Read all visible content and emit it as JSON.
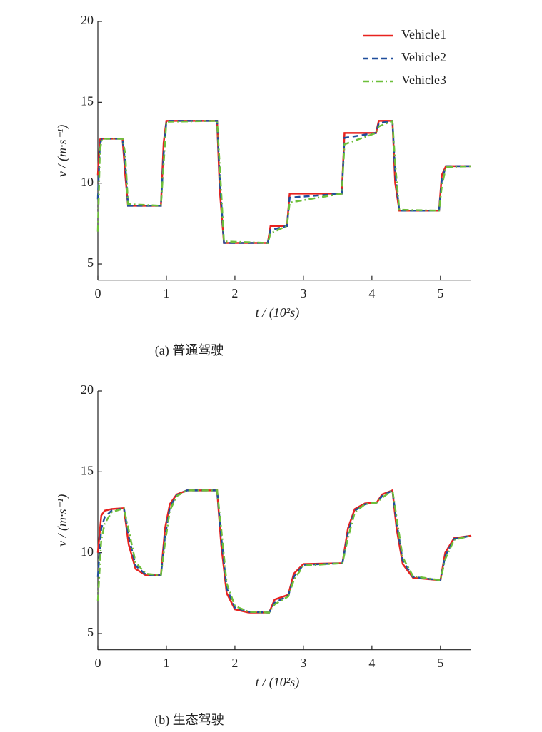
{
  "chart_data": [
    {
      "type": "line",
      "caption": "(a)  普通驾驶",
      "x_label": "t / (10²s)",
      "y_label": "v / (m·s⁻¹)",
      "x": [
        0,
        0.03,
        0.06,
        0.36,
        0.4,
        0.44,
        0.92,
        0.96,
        1.0,
        1.74,
        1.78,
        1.84,
        2.48,
        2.52,
        2.76,
        2.8,
        3.56,
        3.6,
        4.06,
        4.1,
        4.3,
        4.34,
        4.4,
        4.98,
        5.02,
        5.08,
        5.45
      ],
      "series": [
        {
          "name": "Vehicle1",
          "color": "#e8221f",
          "dash": "solid",
          "values": [
            10.5,
            12.7,
            12.75,
            12.75,
            10.5,
            8.6,
            8.6,
            12.5,
            13.85,
            13.85,
            9.5,
            6.3,
            6.3,
            7.35,
            7.35,
            9.35,
            9.35,
            13.1,
            13.1,
            13.85,
            13.85,
            10,
            8.3,
            8.3,
            10.5,
            11.05,
            11.05
          ]
        },
        {
          "name": "Vehicle2",
          "color": "#1f4e9c",
          "dash": "dashed",
          "values": [
            9,
            12.4,
            12.75,
            12.75,
            11.2,
            8.6,
            8.6,
            11.8,
            13.85,
            13.85,
            10.2,
            6.3,
            6.3,
            7.1,
            7.35,
            9.1,
            9.35,
            12.8,
            13.1,
            13.7,
            13.85,
            10.6,
            8.3,
            8.3,
            10.2,
            11.05,
            11.05
          ]
        },
        {
          "name": "Vehicle3",
          "color": "#6dbf3a",
          "dash": "dashdot",
          "values": [
            7,
            12.0,
            12.75,
            12.75,
            11.8,
            8.7,
            8.6,
            11.2,
            13.8,
            13.85,
            11.0,
            6.4,
            6.3,
            6.9,
            7.35,
            8.8,
            9.35,
            12.4,
            13.1,
            13.5,
            13.85,
            11.2,
            8.35,
            8.3,
            9.8,
            11.0,
            11.05
          ]
        }
      ],
      "xlim": [
        0,
        5.45
      ],
      "xticks": [
        0,
        1,
        2,
        3,
        4,
        5
      ],
      "ylim": [
        4,
        20
      ],
      "yticks": [
        5,
        10,
        15,
        20
      ],
      "legend": "upper right"
    },
    {
      "type": "line",
      "caption": "(b)  生态驾驶",
      "x_label": "t / (10²s)",
      "y_label": "v / (m·s⁻¹)",
      "x": [
        0,
        0.05,
        0.1,
        0.2,
        0.38,
        0.45,
        0.55,
        0.7,
        0.92,
        0.98,
        1.05,
        1.15,
        1.3,
        1.74,
        1.8,
        1.88,
        2.0,
        2.2,
        2.5,
        2.58,
        2.78,
        2.86,
        3.0,
        3.57,
        3.65,
        3.75,
        3.9,
        4.07,
        4.15,
        4.3,
        4.36,
        4.45,
        4.6,
        5.0,
        5.07,
        5.2,
        5.45
      ],
      "series": [
        {
          "name": "Vehicle1",
          "color": "#e8221f",
          "dash": "solid",
          "values": [
            10,
            12.3,
            12.6,
            12.7,
            12.75,
            10.5,
            9.0,
            8.6,
            8.6,
            11.5,
            13.0,
            13.6,
            13.85,
            13.85,
            10.5,
            7.5,
            6.5,
            6.3,
            6.3,
            7.1,
            7.4,
            8.7,
            9.3,
            9.35,
            11.5,
            12.7,
            13.05,
            13.1,
            13.6,
            13.85,
            11.5,
            9.3,
            8.45,
            8.3,
            10.0,
            10.9,
            11.05
          ]
        },
        {
          "name": "Vehicle2",
          "color": "#1f4e9c",
          "dash": "dashed",
          "values": [
            8.5,
            11.5,
            12.2,
            12.6,
            12.75,
            11.0,
            9.2,
            8.65,
            8.6,
            11.0,
            12.8,
            13.55,
            13.85,
            13.85,
            11.0,
            7.8,
            6.6,
            6.35,
            6.3,
            6.9,
            7.35,
            8.5,
            9.25,
            9.35,
            11.2,
            12.6,
            13.0,
            13.1,
            13.5,
            13.85,
            11.9,
            9.5,
            8.5,
            8.3,
            9.8,
            10.85,
            11.05
          ]
        },
        {
          "name": "Vehicle3",
          "color": "#6dbf3a",
          "dash": "dashdot",
          "values": [
            7,
            10.8,
            11.8,
            12.5,
            12.75,
            11.4,
            9.4,
            8.7,
            8.6,
            10.6,
            12.6,
            13.5,
            13.85,
            13.85,
            11.5,
            8.1,
            6.7,
            6.35,
            6.3,
            6.8,
            7.3,
            8.3,
            9.2,
            9.35,
            10.9,
            12.5,
            13.0,
            13.1,
            13.4,
            13.85,
            12.2,
            9.7,
            8.55,
            8.3,
            9.6,
            10.8,
            11.05
          ]
        }
      ],
      "xlim": [
        0,
        5.45
      ],
      "xticks": [
        0,
        1,
        2,
        3,
        4,
        5
      ],
      "ylim": [
        4,
        20
      ],
      "yticks": [
        5,
        10,
        15,
        20
      ]
    }
  ]
}
